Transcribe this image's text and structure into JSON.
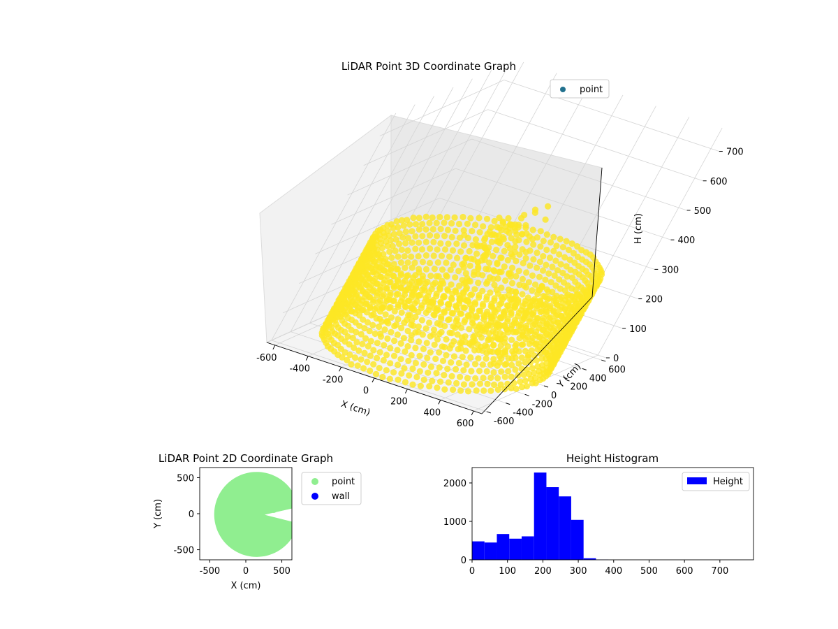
{
  "chart_data": [
    {
      "type": "scatter3d",
      "title": "LiDAR Point 3D Coordinate Graph",
      "xlabel": "X (cm)",
      "ylabel": "Y (cm)",
      "zlabel": "H (cm)",
      "xlim": [
        -650,
        650
      ],
      "ylim": [
        -650,
        650
      ],
      "zlim": [
        770,
        0
      ],
      "xticks": [
        -600,
        -400,
        -200,
        0,
        200,
        400,
        600
      ],
      "yticks": [
        -600,
        -400,
        -200,
        0,
        200,
        400,
        600
      ],
      "zticks": [
        0,
        100,
        200,
        300,
        400,
        500,
        600,
        700
      ],
      "colormap": "viridis",
      "series": [
        {
          "name": "point",
          "color": "#21718e",
          "shape": "cylindrical wall of points, radius about 600 cm, height about 0-320 cm, plus interior clutter",
          "wall": {
            "center": [
              0,
              0
            ],
            "radius": 600,
            "h_range": [
              0,
              320
            ]
          },
          "interior_clusters": [
            {
              "x": [
                -450,
                200
              ],
              "y": [
                -80,
                380
              ],
              "h": [
                0,
                150
              ]
            },
            {
              "x": [
                -100,
                100
              ],
              "y": [
                -300,
                350
              ],
              "h": [
                200,
                450
              ]
            },
            {
              "x": [
                250,
                560
              ],
              "y": [
                -420,
                -150
              ],
              "h": [
                100,
                330
              ]
            }
          ]
        }
      ],
      "legend": {
        "position": "top-right",
        "entries": [
          "point"
        ]
      },
      "grid": true
    },
    {
      "type": "scatter",
      "title": "LiDAR Point 2D Coordinate Graph",
      "xlabel": "X (cm)",
      "ylabel": "Y (cm)",
      "xlim": [
        -640,
        640
      ],
      "ylim": [
        -640,
        640
      ],
      "xticks": [
        -500,
        0,
        500
      ],
      "yticks": [
        -500,
        0,
        500
      ],
      "series": [
        {
          "name": "point",
          "color": "#90ee90",
          "shape": "filled disc of points centered near (150, -10) cm, radius about 590 cm, with a wedge gap opening toward +X"
        },
        {
          "name": "wall",
          "color": "#0000ff",
          "values": []
        }
      ],
      "legend": {
        "position": "outside-right",
        "entries": [
          "point",
          "wall"
        ]
      },
      "grid": false
    },
    {
      "type": "histogram",
      "title": "Height Histogram",
      "xlim": [
        0,
        795
      ],
      "ylim": [
        0,
        2400
      ],
      "xticks": [
        0,
        100,
        200,
        300,
        400,
        500,
        600,
        700
      ],
      "yticks": [
        0,
        1000,
        2000
      ],
      "bin_width": 35,
      "bin_start": 0,
      "values": [
        480,
        450,
        670,
        550,
        610,
        2270,
        1890,
        1650,
        1040,
        40,
        5,
        0,
        0,
        0,
        0,
        0,
        0,
        0,
        0,
        0,
        0,
        0
      ],
      "series": [
        {
          "name": "Height",
          "color": "#0000ff"
        }
      ],
      "legend": {
        "position": "top-right",
        "entries": [
          "Height"
        ]
      },
      "grid": false
    }
  ]
}
